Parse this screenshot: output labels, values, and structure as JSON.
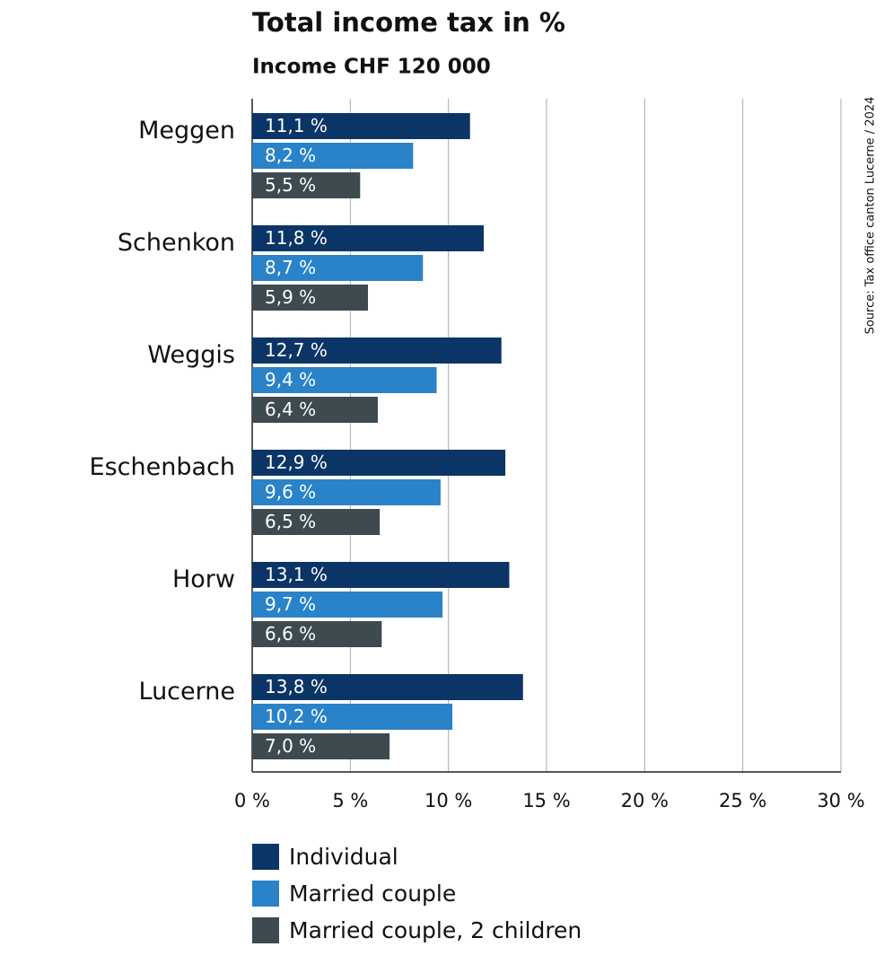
{
  "chart_data": {
    "type": "bar",
    "orientation": "horizontal",
    "title": "Total income tax in %",
    "subtitle": "Income CHF 120 000",
    "source": "Source: Tax office canton Lucerne / 2024",
    "categories": [
      "Meggen",
      "Schenkon",
      "Weggis",
      "Eschenbach",
      "Horw",
      "Lucerne"
    ],
    "series": [
      {
        "name": "Individual",
        "color": "#0b3566",
        "values": [
          11.1,
          11.8,
          12.7,
          12.9,
          13.1,
          13.8
        ],
        "value_labels": [
          "11,1 %",
          "11,8 %",
          "12,7 %",
          "12,9 %",
          "13,1 %",
          "13,8 %"
        ]
      },
      {
        "name": "Married couple",
        "color": "#2a82c9",
        "values": [
          8.2,
          8.7,
          9.4,
          9.6,
          9.7,
          10.2
        ],
        "value_labels": [
          "8,2 %",
          "8,7 %",
          "9,4 %",
          "9,6 %",
          "9,7 %",
          "10,2 %"
        ]
      },
      {
        "name": "Married couple, 2 children",
        "color": "#3d4a4f",
        "values": [
          5.5,
          5.9,
          6.4,
          6.5,
          6.6,
          7.0
        ],
        "value_labels": [
          "5,5 %",
          "5,9 %",
          "6,4 %",
          "6,5 %",
          "6,6 %",
          "7,0 %"
        ]
      }
    ],
    "xlim": [
      0,
      30
    ],
    "xticks": [
      {
        "value": 0,
        "label": "0 %"
      },
      {
        "value": 5,
        "label": "5 %"
      },
      {
        "value": 10,
        "label": "10 %"
      },
      {
        "value": 15,
        "label": "15 %"
      },
      {
        "value": 20,
        "label": "20 %"
      },
      {
        "value": 25,
        "label": "25 %"
      },
      {
        "value": 30,
        "label": "30 %"
      }
    ],
    "grid": true
  }
}
